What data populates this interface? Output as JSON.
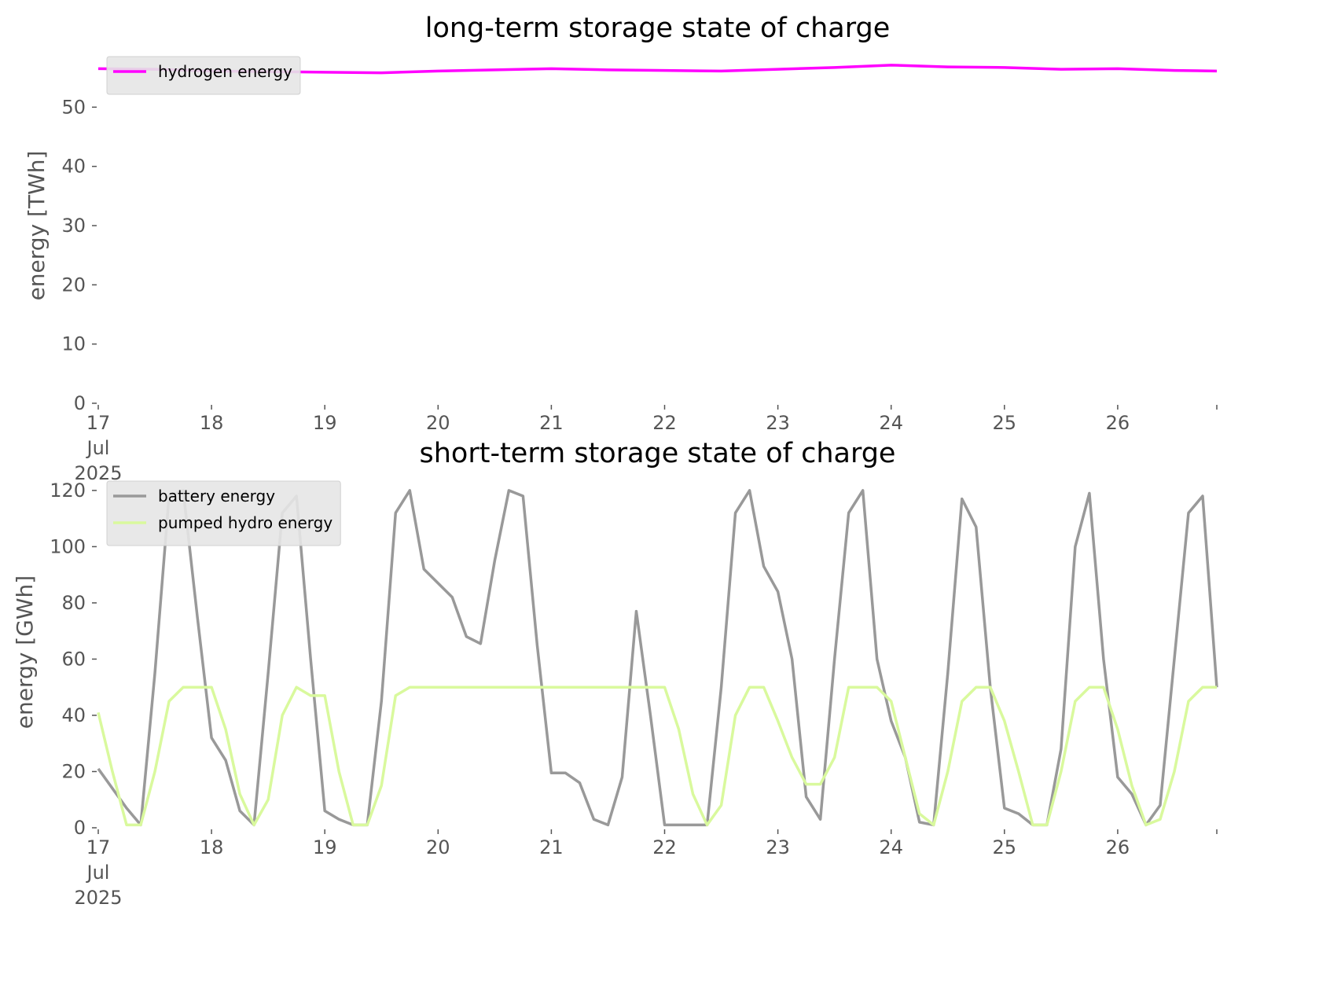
{
  "chart_data": [
    {
      "type": "line",
      "title": "long-term storage state of charge",
      "ylabel": "energy [TWh]",
      "x": [
        "2025-07-17 00:00",
        "2025-07-17 12:00",
        "2025-07-18 00:00",
        "2025-07-18 12:00",
        "2025-07-19 00:00",
        "2025-07-19 12:00",
        "2025-07-20 00:00",
        "2025-07-20 12:00",
        "2025-07-21 00:00",
        "2025-07-21 12:00",
        "2025-07-22 00:00",
        "2025-07-22 12:00",
        "2025-07-23 00:00",
        "2025-07-23 12:00",
        "2025-07-24 00:00",
        "2025-07-24 12:00",
        "2025-07-25 00:00",
        "2025-07-25 12:00",
        "2025-07-26 00:00",
        "2025-07-26 12:00",
        "2025-07-26 21:00"
      ],
      "series": [
        {
          "name": "hydrogen energy",
          "color": "#ff00ff",
          "values": [
            56.5,
            56.4,
            56.1,
            56.0,
            55.9,
            55.8,
            56.1,
            56.3,
            56.5,
            56.3,
            56.2,
            56.1,
            56.4,
            56.7,
            57.1,
            56.8,
            56.7,
            56.4,
            56.5,
            56.2,
            56.1
          ]
        }
      ],
      "xlim": [
        "2025-07-17 00:00",
        "2025-07-26 21:00"
      ],
      "xticks": [
        {
          "value": "2025-07-17 00:00",
          "label": "17\nJul\n2025"
        },
        {
          "value": "2025-07-18 00:00",
          "label": "18"
        },
        {
          "value": "2025-07-19 00:00",
          "label": "19"
        },
        {
          "value": "2025-07-20 00:00",
          "label": "20"
        },
        {
          "value": "2025-07-21 00:00",
          "label": "21"
        },
        {
          "value": "2025-07-22 00:00",
          "label": "22"
        },
        {
          "value": "2025-07-23 00:00",
          "label": "23"
        },
        {
          "value": "2025-07-24 00:00",
          "label": "24"
        },
        {
          "value": "2025-07-25 00:00",
          "label": "25"
        },
        {
          "value": "2025-07-26 00:00",
          "label": "26"
        }
      ],
      "ylim": [
        0,
        60
      ],
      "yticks": [
        0,
        10,
        20,
        30,
        40,
        50
      ],
      "legend": "upper left"
    },
    {
      "type": "line",
      "title": "short-term storage state of charge",
      "ylabel": "energy [GWh]",
      "x": [
        "2025-07-17 00:00",
        "2025-07-17 03:00",
        "2025-07-17 06:00",
        "2025-07-17 09:00",
        "2025-07-17 12:00",
        "2025-07-17 15:00",
        "2025-07-17 18:00",
        "2025-07-17 21:00",
        "2025-07-18 00:00",
        "2025-07-18 03:00",
        "2025-07-18 06:00",
        "2025-07-18 09:00",
        "2025-07-18 12:00",
        "2025-07-18 15:00",
        "2025-07-18 18:00",
        "2025-07-18 21:00",
        "2025-07-19 00:00",
        "2025-07-19 03:00",
        "2025-07-19 06:00",
        "2025-07-19 09:00",
        "2025-07-19 12:00",
        "2025-07-19 15:00",
        "2025-07-19 18:00",
        "2025-07-19 21:00",
        "2025-07-20 00:00",
        "2025-07-20 03:00",
        "2025-07-20 06:00",
        "2025-07-20 09:00",
        "2025-07-20 12:00",
        "2025-07-20 15:00",
        "2025-07-20 18:00",
        "2025-07-20 21:00",
        "2025-07-21 00:00",
        "2025-07-21 03:00",
        "2025-07-21 06:00",
        "2025-07-21 09:00",
        "2025-07-21 12:00",
        "2025-07-21 15:00",
        "2025-07-21 18:00",
        "2025-07-21 21:00",
        "2025-07-22 00:00",
        "2025-07-22 03:00",
        "2025-07-22 06:00",
        "2025-07-22 09:00",
        "2025-07-22 12:00",
        "2025-07-22 15:00",
        "2025-07-22 18:00",
        "2025-07-22 21:00",
        "2025-07-23 00:00",
        "2025-07-23 03:00",
        "2025-07-23 06:00",
        "2025-07-23 09:00",
        "2025-07-23 12:00",
        "2025-07-23 15:00",
        "2025-07-23 18:00",
        "2025-07-23 21:00",
        "2025-07-24 00:00",
        "2025-07-24 03:00",
        "2025-07-24 06:00",
        "2025-07-24 09:00",
        "2025-07-24 12:00",
        "2025-07-24 15:00",
        "2025-07-24 18:00",
        "2025-07-24 21:00",
        "2025-07-25 00:00",
        "2025-07-25 03:00",
        "2025-07-25 06:00",
        "2025-07-25 09:00",
        "2025-07-25 12:00",
        "2025-07-25 15:00",
        "2025-07-25 18:00",
        "2025-07-25 21:00",
        "2025-07-26 00:00",
        "2025-07-26 03:00",
        "2025-07-26 06:00",
        "2025-07-26 09:00",
        "2025-07-26 12:00",
        "2025-07-26 15:00",
        "2025-07-26 18:00",
        "2025-07-26 21:00"
      ],
      "series": [
        {
          "name": "battery energy",
          "color": "#999999",
          "values": [
            21,
            14,
            7,
            1,
            55,
            118,
            120,
            75,
            32,
            24,
            6,
            1,
            55,
            112,
            118,
            60,
            6,
            3,
            1,
            1,
            45,
            112,
            120,
            92,
            87,
            82,
            68,
            65.5,
            95,
            120,
            118,
            65,
            19.5,
            19.5,
            16,
            3,
            1,
            18,
            77,
            40,
            1,
            1,
            1,
            1,
            50,
            112,
            120,
            93,
            84,
            60,
            11,
            3,
            60,
            112,
            120,
            60,
            38,
            25,
            2,
            1,
            55,
            117,
            107,
            50,
            7,
            5,
            1,
            1,
            28,
            100,
            119,
            60,
            18,
            12,
            1,
            8,
            60,
            112,
            118,
            50
          ]
        },
        {
          "name": "pumped hydro energy",
          "color": "#d9f99d",
          "values": [
            41,
            20,
            1,
            1,
            20,
            45,
            50,
            50,
            50,
            35,
            12,
            1,
            10,
            40,
            50,
            47,
            47,
            20,
            1,
            1,
            15,
            47,
            50,
            50,
            50,
            50,
            50,
            50,
            50,
            50,
            50,
            50,
            50,
            50,
            50,
            50,
            50,
            50,
            50,
            50,
            50,
            35,
            12,
            1,
            8,
            40,
            50,
            50,
            38,
            25,
            15.5,
            15.5,
            25,
            50,
            50,
            50,
            45,
            25,
            5,
            1,
            20,
            45,
            50,
            50,
            38,
            20,
            1,
            1,
            20,
            45,
            50,
            50,
            35,
            15,
            1,
            3,
            20,
            45,
            50,
            50
          ]
        }
      ],
      "xlim": [
        "2025-07-17 00:00",
        "2025-07-26 21:00"
      ],
      "xticks": [
        {
          "value": "2025-07-17 00:00",
          "label": "17\nJul\n2025"
        },
        {
          "value": "2025-07-18 00:00",
          "label": "18"
        },
        {
          "value": "2025-07-19 00:00",
          "label": "19"
        },
        {
          "value": "2025-07-20 00:00",
          "label": "20"
        },
        {
          "value": "2025-07-21 00:00",
          "label": "21"
        },
        {
          "value": "2025-07-22 00:00",
          "label": "22"
        },
        {
          "value": "2025-07-23 00:00",
          "label": "23"
        },
        {
          "value": "2025-07-24 00:00",
          "label": "24"
        },
        {
          "value": "2025-07-25 00:00",
          "label": "25"
        },
        {
          "value": "2025-07-26 00:00",
          "label": "26"
        }
      ],
      "ylim": [
        0,
        125
      ],
      "yticks": [
        0,
        20,
        40,
        60,
        80,
        100,
        120
      ],
      "legend": "upper left"
    }
  ]
}
